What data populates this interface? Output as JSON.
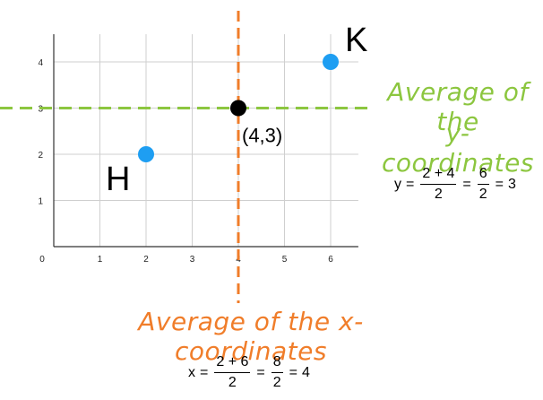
{
  "diagram": {
    "x_range": [
      0,
      6.6
    ],
    "y_range": [
      0,
      4.6
    ],
    "x_ticks": [
      "0",
      "1",
      "2",
      "3",
      "4",
      "5",
      "6"
    ],
    "y_ticks": [
      "1",
      "2",
      "3",
      "4"
    ],
    "points": [
      {
        "label": "H",
        "x": 2,
        "y": 2,
        "color": "#1e9ef2"
      },
      {
        "label": "K",
        "x": 6,
        "y": 4,
        "color": "#1e9ef2"
      },
      {
        "label": "(4,3)",
        "x": 4,
        "y": 3,
        "color": "#000000"
      }
    ],
    "average_lines": {
      "x_line_value": 4,
      "x_line_color": "#f07d2a",
      "y_line_value": 3,
      "y_line_color": "#8cc63f"
    }
  },
  "captions": {
    "y_line1": "Average of the",
    "y_line2": "y-coordinates",
    "x_caption": "Average of the x-coordinates",
    "y_color": "#8cc63f",
    "x_color": "#f07d2a"
  },
  "equations": {
    "y": {
      "var": "y",
      "eq": "=",
      "num1": "2 + 4",
      "den1": "2",
      "num2": "6",
      "den2": "2",
      "result": "3"
    },
    "x": {
      "var": "x",
      "eq": "=",
      "num1": "2 + 6",
      "den1": "2",
      "num2": "8",
      "den2": "2",
      "result": "4"
    }
  }
}
